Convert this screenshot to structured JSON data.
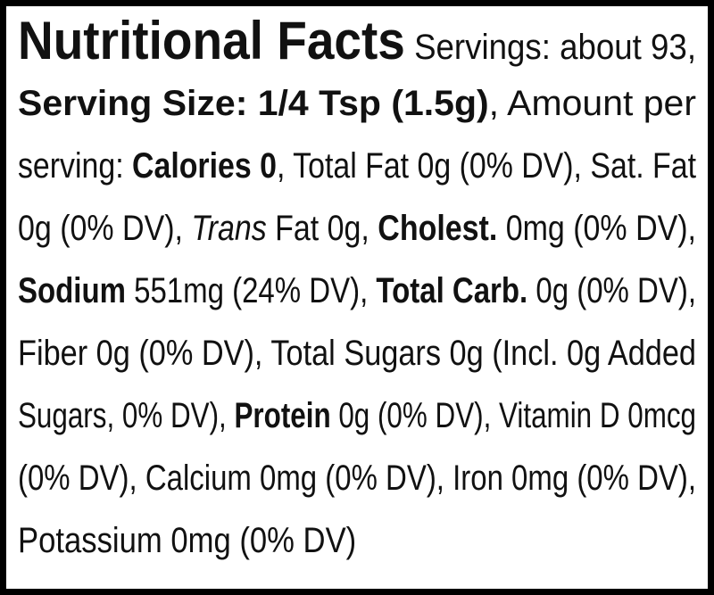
{
  "lines": [
    [
      {
        "text": "Nutritional Facts",
        "style": "heading"
      },
      {
        "text": " Servings: about 93,",
        "style": "regular"
      }
    ],
    [
      {
        "text": "Serving Size: 1/4 Tsp (1.5g)",
        "style": "bold"
      },
      {
        "text": ", Amount per",
        "style": "regular"
      }
    ],
    [
      {
        "text": "serving: ",
        "style": "regular"
      },
      {
        "text": "Calories 0",
        "style": "bold"
      },
      {
        "text": ", Total Fat 0g (0% DV), Sat. Fat",
        "style": "regular"
      }
    ],
    [
      {
        "text": "0g (0% DV), ",
        "style": "regular"
      },
      {
        "text": "Trans",
        "style": "italic"
      },
      {
        "text": " Fat 0g, ",
        "style": "regular"
      },
      {
        "text": "Cholest.",
        "style": "bold"
      },
      {
        "text": " 0mg (0% DV),",
        "style": "regular"
      }
    ],
    [
      {
        "text": "Sodium",
        "style": "bold"
      },
      {
        "text": " 551mg (24% DV), ",
        "style": "regular"
      },
      {
        "text": "Total Carb.",
        "style": "bold"
      },
      {
        "text": " 0g (0% DV),",
        "style": "regular"
      }
    ],
    [
      {
        "text": "Fiber 0g (0% DV), Total Sugars 0g (Incl. 0g Added",
        "style": "regular"
      }
    ],
    [
      {
        "text": "Sugars, 0% DV), ",
        "style": "regular"
      },
      {
        "text": "Protein",
        "style": "bold"
      },
      {
        "text": " 0g (0% DV), Vitamin D 0mcg",
        "style": "regular"
      }
    ],
    [
      {
        "text": "(0% DV), Calcium 0mg (0% DV), Iron 0mg (0% DV),",
        "style": "regular"
      }
    ],
    [
      {
        "text": "Potassium 0mg (0% DV)",
        "style": "regular"
      }
    ]
  ]
}
